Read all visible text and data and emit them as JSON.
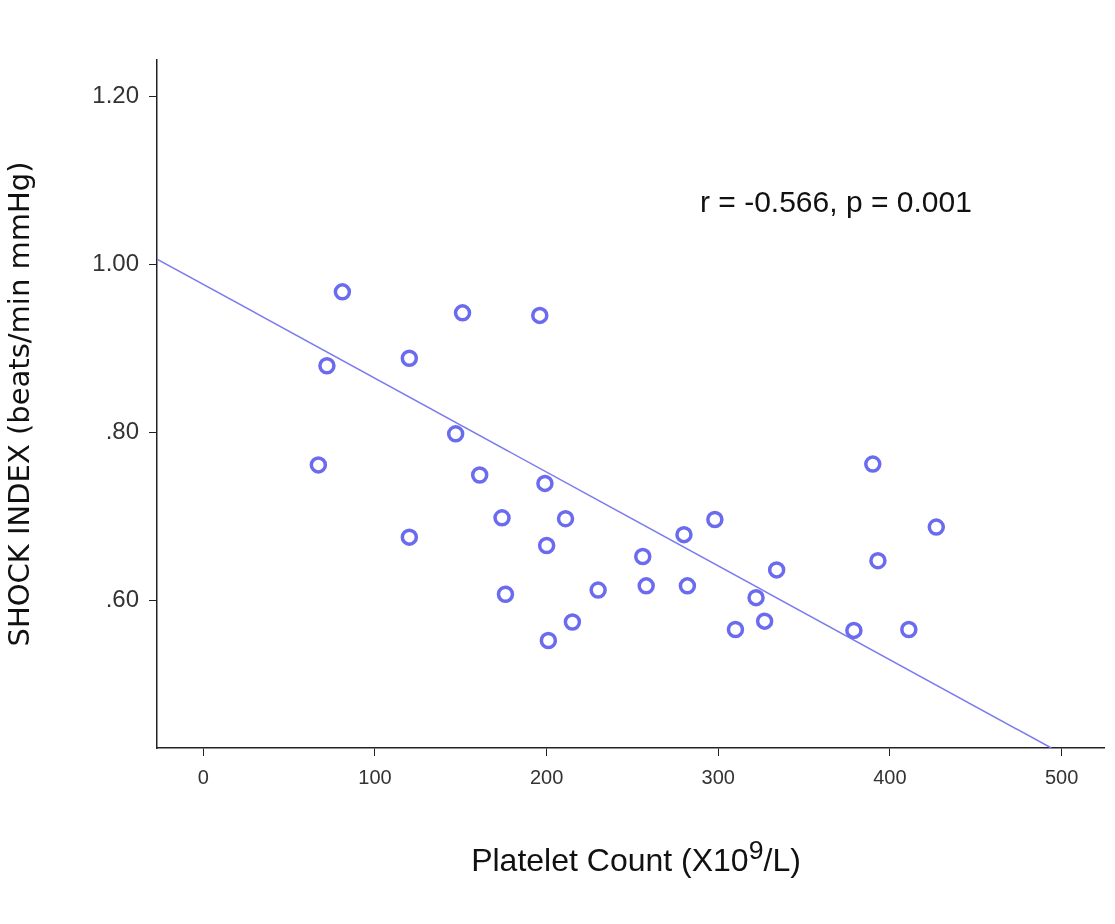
{
  "chart_data": {
    "type": "scatter",
    "xlabel": "Platelet Count (X10$^{9}$/L)",
    "ylabel": "SHOCK INDEX (beats/min mmHg)",
    "xlim": [
      -27,
      525
    ],
    "ylim": [
      0.424,
      1.243
    ],
    "xticks": [
      0,
      100,
      200,
      300,
      400,
      500
    ],
    "yticks": [
      {
        "value": 0.6,
        "label": ".60"
      },
      {
        "value": 0.8,
        "label": ".80"
      },
      {
        "value": 1.0,
        "label": "1.00"
      },
      {
        "value": 1.2,
        "label": "1.20"
      }
    ],
    "grid": false,
    "legend": false,
    "marker": "circle",
    "annotations": [
      "r = -0.566, p = 0.001"
    ],
    "series": [
      {
        "type": "scatter",
        "color": "#6b6bf0",
        "x": [
          81,
          72,
          67,
          120,
          120,
          151,
          147,
          161,
          174,
          176,
          196,
          199,
          200,
          201,
          211,
          215,
          230,
          256,
          258,
          280,
          282,
          298,
          322,
          310,
          327,
          334,
          379,
          390,
          393,
          411,
          427
        ],
        "values": [
          0.967,
          0.879,
          0.761,
          0.888,
          0.675,
          0.942,
          0.798,
          0.749,
          0.698,
          0.607,
          0.939,
          0.739,
          0.665,
          0.552,
          0.697,
          0.574,
          0.612,
          0.652,
          0.617,
          0.678,
          0.617,
          0.696,
          0.603,
          0.565,
          0.575,
          0.636,
          0.564,
          0.762,
          0.647,
          0.565,
          0.687
        ]
      },
      {
        "type": "line",
        "color": "#7b7bf0",
        "marker": "none",
        "line_style": "solid",
        "x": [
          -27,
          494
        ],
        "values": [
          1.006,
          0.424
        ]
      }
    ]
  }
}
